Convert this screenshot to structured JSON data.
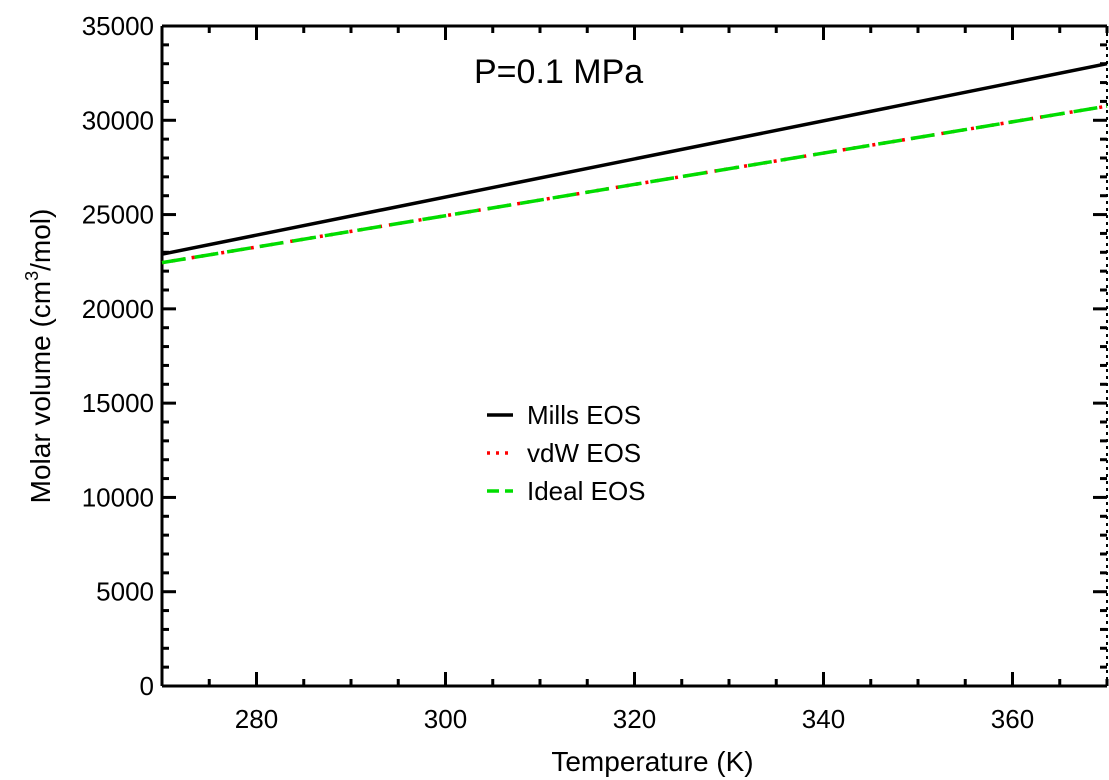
{
  "chart_data": {
    "type": "line",
    "title": "",
    "annotation": "P=0.1 MPa",
    "xlabel": "Temperature (K)",
    "ylabel_main": "Molar volume (cm",
    "ylabel_sup": "3",
    "ylabel_tail": "/mol)",
    "xlim": [
      270,
      370
    ],
    "ylim": [
      0,
      35000
    ],
    "x_ticks": [
      280,
      300,
      320,
      340,
      360
    ],
    "y_ticks": [
      0,
      5000,
      10000,
      15000,
      20000,
      25000,
      30000,
      35000
    ],
    "legend_position": "center",
    "grid": false,
    "series": [
      {
        "name": "Mills EOS",
        "style": "solid",
        "color": "#000000",
        "x": [
          270,
          370
        ],
        "y": [
          22900,
          33000
        ]
      },
      {
        "name": "vdW EOS",
        "style": "dotted",
        "color": "#ff0000",
        "x": [
          270,
          370
        ],
        "y": [
          22450,
          30750
        ]
      },
      {
        "name": "Ideal EOS",
        "style": "dashed",
        "color": "#00dd00",
        "x": [
          270,
          370
        ],
        "y": [
          22450,
          30750
        ]
      }
    ]
  }
}
